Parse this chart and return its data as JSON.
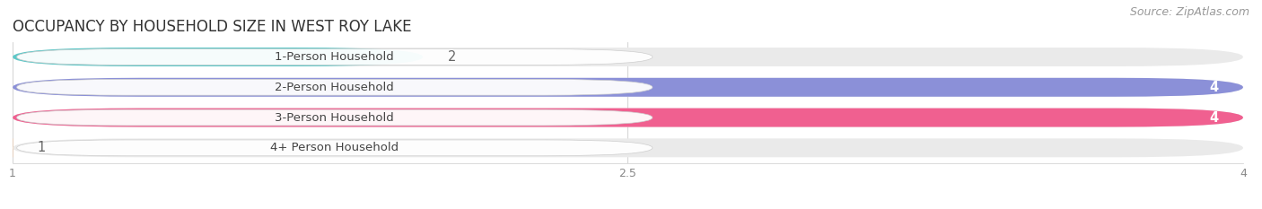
{
  "title": "OCCUPANCY BY HOUSEHOLD SIZE IN WEST ROY LAKE",
  "source_text": "Source: ZipAtlas.com",
  "categories": [
    "1-Person Household",
    "2-Person Household",
    "3-Person Household",
    "4+ Person Household"
  ],
  "values": [
    2,
    4,
    4,
    1
  ],
  "bar_colors": [
    "#5DC8C8",
    "#8B90D8",
    "#F06090",
    "#F5C8A0"
  ],
  "bar_bg_color": "#EAEAEA",
  "xlim": [
    1,
    4
  ],
  "xticks": [
    1,
    2.5,
    4
  ],
  "label_fontsize": 9.5,
  "title_fontsize": 12,
  "source_fontsize": 9,
  "text_color": "#444444",
  "value_color_inside": "#FFFFFF",
  "value_color_outside": "#666666",
  "background_color": "#FFFFFF",
  "bar_height": 0.62,
  "label_pill_color": "#FFFFFF",
  "label_pill_alpha": 0.95
}
